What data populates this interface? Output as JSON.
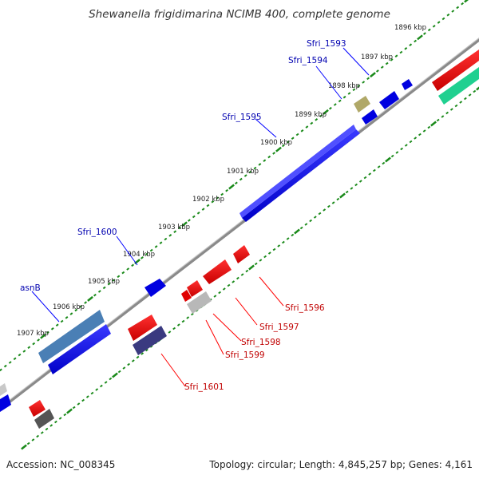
{
  "title": "Shewanella frigidimarina NCIMB 400, complete genome",
  "footer": {
    "accession": "Accession: NC_008345",
    "topology": "Topology: circular; Length: 4,845,257 bp; Genes: 4,161"
  },
  "colors": {
    "backbone": "#8a8a8a",
    "tick": "#1a8a1a",
    "forward_gene": "#0000e0",
    "reverse_gene": "#e00000",
    "label_forward": "#0000b0",
    "label_reverse": "#c00000",
    "leader_forward": "#0000ff",
    "leader_reverse": "#ff0000"
  },
  "ticks": [
    "1896 kbp",
    "1897 kbp",
    "1898 kbp",
    "1899 kbp",
    "1900 kbp",
    "1901 kbp",
    "1902 kbp",
    "1903 kbp",
    "1904 kbp",
    "1905 kbp",
    "1906 kbp",
    "1907 kbp"
  ],
  "genes_forward": [
    {
      "name": "Sfri_1593",
      "color": "#0000e0"
    },
    {
      "name": "Sfri_1594",
      "color": "#0000e0"
    },
    {
      "name": "Sfri_1595",
      "color": "#0000e0"
    },
    {
      "name": "Sfri_1600",
      "color": "#0000e0"
    },
    {
      "name": "asnB",
      "color": "#4a7fb5"
    }
  ],
  "genes_reverse": [
    {
      "name": "Sfri_1596",
      "color": "#e00000"
    },
    {
      "name": "Sfri_1597",
      "color": "#e00000"
    },
    {
      "name": "Sfri_1598",
      "color": "#e00000"
    },
    {
      "name": "Sfri_1599",
      "color": "#b0b0b0"
    },
    {
      "name": "Sfri_1601",
      "color": "#3a3a80"
    }
  ]
}
